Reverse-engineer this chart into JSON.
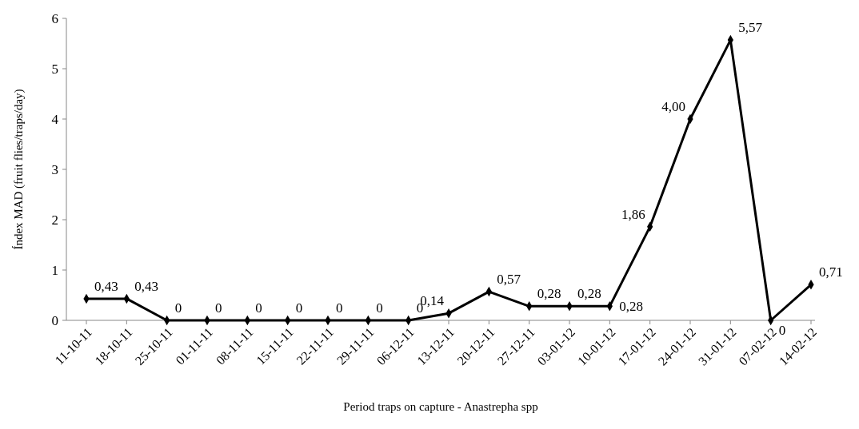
{
  "chart_data": {
    "type": "line",
    "xlabel": "Period traps on capture - Anastrepha spp",
    "ylabel": "Índex MAD (fruit flies/traps/day)",
    "categories": [
      "11-10-11",
      "18-10-11",
      "25-10-11",
      "01-11-11",
      "08-11-11",
      "15-11-11",
      "22-11-11",
      "29-11-11",
      "06-12-11",
      "13-12-11",
      "20-12-11",
      "27-12-11",
      "03-01-12",
      "10-01-12",
      "17-01-12",
      "24-01-12",
      "31-01-12",
      "07-02-12",
      "14-02-12"
    ],
    "values": [
      0.43,
      0.43,
      0,
      0,
      0,
      0,
      0,
      0,
      0,
      0.14,
      0.57,
      0.28,
      0.28,
      0.28,
      1.86,
      4.0,
      5.57,
      0,
      0.71
    ],
    "value_labels": [
      "0,43",
      "0,43",
      "0",
      "0",
      "0",
      "0",
      "0",
      "0",
      "0",
      "0,14",
      "0,57",
      "0,28",
      "0,28",
      "0,28",
      "1,86",
      "4,00",
      "5,57",
      "0",
      "0,71"
    ],
    "color": "#000000",
    "marker": "diamond",
    "line_style": "solid",
    "grid": false,
    "ylim": [
      0,
      6
    ],
    "yticks": [
      0,
      1,
      2,
      3,
      4,
      5,
      6
    ]
  }
}
